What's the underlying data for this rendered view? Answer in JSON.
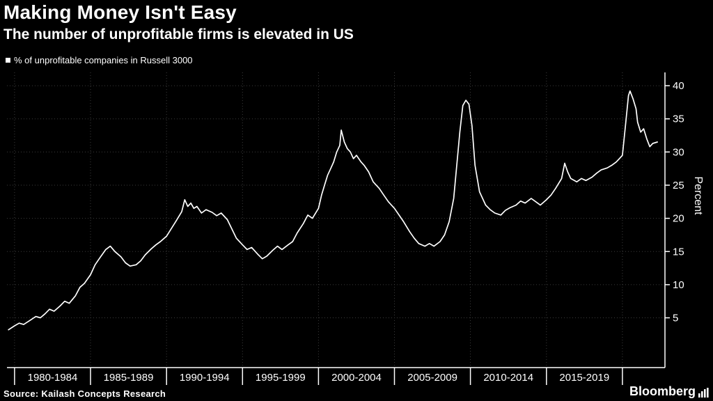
{
  "header": {
    "title": "Making Money Isn't Easy",
    "subtitle": "The number of unprofitable firms is elevated in US"
  },
  "legend": {
    "label": "% of unprofitable companies in Russell 3000",
    "marker_color": "#ffffff"
  },
  "source": "Source: Kailash Concepts Research",
  "branding": "Bloomberg",
  "colors": {
    "background": "#000000",
    "line": "#ffffff",
    "grid": "#3d3d3d",
    "axis": "#ffffff",
    "text": "#ffffff"
  },
  "chart_data": {
    "type": "line",
    "title": "Making Money Isn't Easy",
    "subtitle": "The number of unprofitable firms is elevated in US",
    "xlabel": "",
    "ylabel": "Percent",
    "xlim": [
      1979.5,
      2022.8
    ],
    "ylim": [
      -2.5,
      42
    ],
    "yticks": [
      5,
      10,
      15,
      20,
      25,
      30,
      35,
      40
    ],
    "x_boundaries": [
      1980,
      1985,
      1990,
      1995,
      2000,
      2005,
      2010,
      2015,
      2020
    ],
    "xtick_labels": [
      "1980-1984",
      "1985-1989",
      "1990-1994",
      "1995-1999",
      "2000-2004",
      "2005-2009",
      "2010-2014",
      "2015-2019"
    ],
    "grid": true,
    "legend_position": "top-left",
    "y_axis_side": "right",
    "series": [
      {
        "name": "% of unprofitable companies in Russell 3000",
        "x": [
          1979.6,
          1980.0,
          1980.3,
          1980.6,
          1981.0,
          1981.4,
          1981.7,
          1982.0,
          1982.3,
          1982.6,
          1983.0,
          1983.3,
          1983.6,
          1984.0,
          1984.3,
          1984.6,
          1985.0,
          1985.3,
          1985.6,
          1986.0,
          1986.3,
          1986.6,
          1987.0,
          1987.3,
          1987.6,
          1988.0,
          1988.3,
          1988.6,
          1989.0,
          1989.3,
          1989.6,
          1990.0,
          1990.3,
          1990.6,
          1991.0,
          1991.2,
          1991.4,
          1991.6,
          1991.8,
          1992.0,
          1992.3,
          1992.6,
          1993.0,
          1993.3,
          1993.6,
          1994.0,
          1994.3,
          1994.6,
          1995.0,
          1995.3,
          1995.6,
          1996.0,
          1996.3,
          1996.6,
          1997.0,
          1997.3,
          1997.6,
          1998.0,
          1998.3,
          1998.6,
          1999.0,
          1999.3,
          1999.6,
          2000.0,
          2000.2,
          2000.4,
          2000.6,
          2000.8,
          2001.0,
          2001.2,
          2001.4,
          2001.5,
          2001.7,
          2001.9,
          2002.1,
          2002.3,
          2002.5,
          2002.8,
          2003.0,
          2003.3,
          2003.6,
          2004.0,
          2004.3,
          2004.6,
          2005.0,
          2005.3,
          2005.6,
          2006.0,
          2006.3,
          2006.6,
          2007.0,
          2007.3,
          2007.6,
          2008.0,
          2008.3,
          2008.6,
          2008.9,
          2009.1,
          2009.3,
          2009.5,
          2009.7,
          2009.9,
          2010.1,
          2010.3,
          2010.6,
          2011.0,
          2011.3,
          2011.6,
          2012.0,
          2012.3,
          2012.6,
          2013.0,
          2013.3,
          2013.6,
          2014.0,
          2014.3,
          2014.6,
          2015.0,
          2015.3,
          2015.6,
          2016.0,
          2016.2,
          2016.4,
          2016.6,
          2017.0,
          2017.3,
          2017.6,
          2018.0,
          2018.3,
          2018.6,
          2019.0,
          2019.3,
          2019.6,
          2020.0,
          2020.2,
          2020.4,
          2020.5,
          2020.7,
          2020.9,
          2021.0,
          2021.2,
          2021.4,
          2021.6,
          2021.8,
          2022.0,
          2022.3
        ],
        "y": [
          3.2,
          3.8,
          4.2,
          4.0,
          4.6,
          5.2,
          5.0,
          5.6,
          6.3,
          6.0,
          6.8,
          7.5,
          7.2,
          8.3,
          9.6,
          10.2,
          11.5,
          13.0,
          14.0,
          15.3,
          15.8,
          15.0,
          14.2,
          13.3,
          12.8,
          13.0,
          13.6,
          14.5,
          15.4,
          16.0,
          16.5,
          17.3,
          18.4,
          19.5,
          21.0,
          22.8,
          21.8,
          22.3,
          21.5,
          21.8,
          20.8,
          21.3,
          20.9,
          20.4,
          20.8,
          19.8,
          18.4,
          17.0,
          16.0,
          15.3,
          15.6,
          14.6,
          13.9,
          14.3,
          15.2,
          15.8,
          15.3,
          16.0,
          16.5,
          17.8,
          19.2,
          20.5,
          20.0,
          21.5,
          23.5,
          25.0,
          26.5,
          27.5,
          28.5,
          30.0,
          31.0,
          33.3,
          31.5,
          30.5,
          30.0,
          29.0,
          29.5,
          28.5,
          28.0,
          27.0,
          25.5,
          24.5,
          23.5,
          22.5,
          21.5,
          20.5,
          19.5,
          18.0,
          17.0,
          16.2,
          15.8,
          16.2,
          15.8,
          16.5,
          17.5,
          19.5,
          23.0,
          28.0,
          33.0,
          37.0,
          37.8,
          37.2,
          34.0,
          28.0,
          24.0,
          22.0,
          21.3,
          20.8,
          20.5,
          21.2,
          21.6,
          22.0,
          22.6,
          22.3,
          23.0,
          22.5,
          22.0,
          22.8,
          23.5,
          24.5,
          26.0,
          28.3,
          27.0,
          26.0,
          25.5,
          26.0,
          25.7,
          26.2,
          26.8,
          27.3,
          27.6,
          28.0,
          28.5,
          29.5,
          34.0,
          38.5,
          39.2,
          38.0,
          36.5,
          34.5,
          33.0,
          33.5,
          32.0,
          30.8,
          31.3,
          31.5
        ]
      }
    ]
  }
}
